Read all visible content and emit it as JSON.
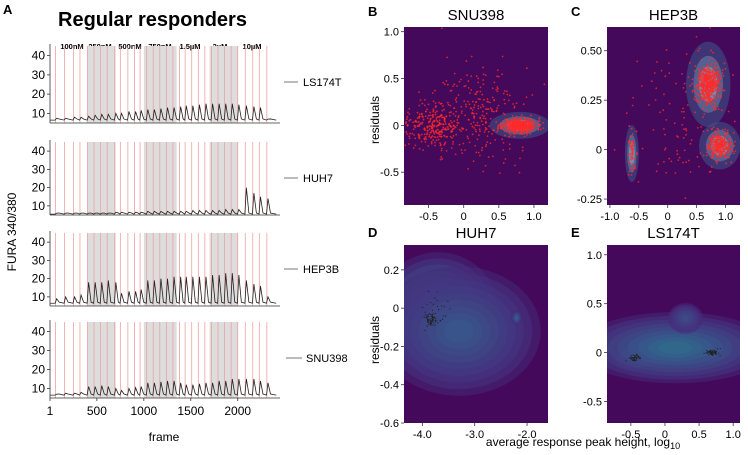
{
  "figure": {
    "panel_labels": [
      "A",
      "B",
      "C",
      "D",
      "E"
    ],
    "title_a": "Regular responders",
    "y_label_a": "FURA 340/380",
    "x_label_a": "frame",
    "y_label_right": "residuals",
    "x_label_right": "average response peak height, log",
    "x_label_right_sub": "10"
  },
  "chart_data": [
    {
      "type": "line",
      "panel": "A",
      "title": "Regular responders",
      "xlabel": "frame",
      "ylabel": "FURA 340/380",
      "xlim": [
        1,
        2450
      ],
      "ylim": [
        5,
        45
      ],
      "x_ticks": [
        1,
        500,
        1000,
        1500,
        2000
      ],
      "x_tick_labels": [
        "1",
        "500",
        "1000",
        "1500",
        "2000"
      ],
      "y_ticks": [
        10,
        20,
        30,
        40
      ],
      "y_tick_labels": [
        "10",
        "20",
        "30",
        "40"
      ],
      "concentrations": [
        "100nM",
        "250nM",
        "500nM",
        "750nM",
        "1.5µM",
        "3µM",
        "10µM"
      ],
      "shaded_regions_frames": [
        [
          400,
          700
        ],
        [
          1000,
          1350
        ],
        [
          1700,
          2000
        ]
      ],
      "stimulus_frames": [
        60,
        155,
        250,
        320,
        400,
        470,
        540,
        610,
        690,
        750,
        830,
        900,
        960,
        1030,
        1100,
        1170,
        1240,
        1310,
        1380,
        1440,
        1510,
        1580,
        1650,
        1720,
        1790,
        1860,
        1930,
        2000,
        2080,
        2160,
        2230,
        2310
      ],
      "series": [
        {
          "name": "LS174T",
          "baseline": 6.5,
          "peaks": [
            7.5,
            7.5,
            8,
            8,
            8.5,
            9,
            9.5,
            9.5,
            10,
            10,
            11,
            11,
            11.5,
            12,
            12,
            12.5,
            13,
            13,
            13.5,
            14,
            14,
            14.5,
            15,
            15,
            15,
            15,
            15,
            14.5,
            14,
            13.5,
            13,
            7
          ]
        },
        {
          "name": "HUH7",
          "baseline": 5.5,
          "peaks": [
            6,
            6,
            6,
            6,
            6,
            6,
            6,
            6,
            6.5,
            6.5,
            6.5,
            6.5,
            6.5,
            7,
            7,
            7,
            7,
            7,
            7,
            7,
            7.5,
            7.5,
            7.5,
            7.5,
            7.5,
            8,
            8,
            8,
            20,
            17,
            15,
            14
          ]
        },
        {
          "name": "HEP3B",
          "baseline": 6.5,
          "peaks": [
            9,
            10,
            10,
            11,
            18,
            18,
            18,
            19,
            18,
            12,
            13,
            13,
            14,
            19,
            19,
            20,
            20,
            21,
            21,
            21,
            21,
            21,
            21,
            22,
            22,
            23,
            23,
            22,
            19,
            17,
            16,
            10
          ]
        },
        {
          "name": "SNU398",
          "baseline": 6.5,
          "peaks": [
            7,
            7.5,
            7.5,
            8,
            11,
            11,
            11.5,
            11,
            10,
            9,
            10,
            10.5,
            11,
            13,
            13,
            13.5,
            14,
            14,
            13,
            12,
            12,
            12.5,
            13,
            13,
            14,
            14,
            15,
            15,
            15,
            15,
            14,
            13
          ]
        }
      ]
    },
    {
      "type": "scatter",
      "panel": "B",
      "title": "SNU398",
      "ylabel": "residuals",
      "xlim": [
        -0.85,
        1.2
      ],
      "ylim": [
        -0.85,
        1.05
      ],
      "x_ticks": [
        -0.5,
        0,
        0.5,
        1.0
      ],
      "x_tick_labels": [
        "-0.5",
        "0",
        "0.5",
        "1.0"
      ],
      "y_ticks": [
        -0.5,
        0,
        0.5,
        1.0
      ],
      "y_tick_labels": [
        "-0.5",
        "0",
        "0.5",
        "1.0"
      ],
      "clusters": [
        {
          "cx": 0.8,
          "cy": 0.0,
          "sx": 0.12,
          "sy": 0.04,
          "n": 500
        },
        {
          "cx": -0.45,
          "cy": 0.0,
          "sx": 0.18,
          "sy": 0.12,
          "n": 260
        },
        {
          "cx": 0.25,
          "cy": 0.1,
          "sx": 0.35,
          "sy": 0.25,
          "n": 260
        }
      ],
      "density": [
        {
          "cx": 0.8,
          "cy": 0.0,
          "sx": 0.18,
          "sy": 0.06
        }
      ]
    },
    {
      "type": "scatter",
      "panel": "C",
      "title": "HEP3B",
      "xlim": [
        -1.05,
        1.25
      ],
      "ylim": [
        -0.28,
        0.62
      ],
      "x_ticks": [
        -1.0,
        -0.5,
        0,
        0.5,
        1.0
      ],
      "x_tick_labels": [
        "-1.0",
        "-0.5",
        "0",
        "0.5",
        "1.0"
      ],
      "y_ticks": [
        -0.25,
        0,
        0.25,
        0.5
      ],
      "y_tick_labels": [
        "-0.25",
        "0",
        "0.25",
        "0.50"
      ],
      "clusters": [
        {
          "cx": 0.7,
          "cy": 0.33,
          "sx": 0.1,
          "sy": 0.05,
          "n": 520
        },
        {
          "cx": 0.9,
          "cy": 0.02,
          "sx": 0.1,
          "sy": 0.03,
          "n": 320
        },
        {
          "cx": -0.62,
          "cy": -0.02,
          "sx": 0.04,
          "sy": 0.06,
          "n": 60
        },
        {
          "cx": 0.3,
          "cy": 0.18,
          "sx": 0.45,
          "sy": 0.2,
          "n": 120
        }
      ],
      "density": [
        {
          "cx": 0.7,
          "cy": 0.33,
          "sx": 0.16,
          "sy": 0.09
        },
        {
          "cx": 0.9,
          "cy": 0.02,
          "sx": 0.15,
          "sy": 0.05
        },
        {
          "cx": -0.62,
          "cy": -0.02,
          "sx": 0.05,
          "sy": 0.06
        }
      ]
    },
    {
      "type": "heatmap",
      "panel": "D",
      "title": "HUH7",
      "ylabel": "residuals",
      "xlim": [
        -4.35,
        -1.6
      ],
      "ylim": [
        -0.6,
        0.33
      ],
      "x_ticks": [
        -4.0,
        -3.0,
        -2.0
      ],
      "x_tick_labels": [
        "-4.0",
        "-3.0",
        "-2.0"
      ],
      "y_ticks": [
        -0.6,
        -0.4,
        -0.2,
        0,
        0.2
      ],
      "y_tick_labels": [
        "-0.6",
        "-0.4",
        "-0.2",
        "0",
        "0.2"
      ],
      "density": [
        {
          "cx": -3.85,
          "cy": -0.06,
          "sx": 0.18,
          "sy": 0.05,
          "w": 1.0
        },
        {
          "cx": -3.7,
          "cy": -0.02,
          "sx": 0.45,
          "sy": 0.12,
          "w": 0.45
        },
        {
          "cx": -3.3,
          "cy": -0.12,
          "sx": 0.6,
          "sy": 0.13,
          "w": 0.2
        },
        {
          "cx": -2.2,
          "cy": -0.05,
          "sx": 0.04,
          "sy": 0.015,
          "w": 0.25
        }
      ]
    },
    {
      "type": "heatmap",
      "panel": "E",
      "title": "LS174T",
      "xlim": [
        -0.85,
        1.1
      ],
      "ylim": [
        -0.72,
        1.1
      ],
      "x_ticks": [
        -0.5,
        0,
        0.5,
        1.0
      ],
      "x_tick_labels": [
        "-0.5",
        "0",
        "0.5",
        "1.0"
      ],
      "y_ticks": [
        -0.5,
        0,
        0.5,
        1.0
      ],
      "y_tick_labels": [
        "-0.5",
        "0",
        "0.5",
        "1.0"
      ],
      "density": [
        {
          "cx": 0.7,
          "cy": 0.0,
          "sx": 0.13,
          "sy": 0.045,
          "w": 1.0
        },
        {
          "cx": -0.45,
          "cy": -0.06,
          "sx": 0.13,
          "sy": 0.05,
          "w": 0.65
        },
        {
          "cx": 0.15,
          "cy": 0.05,
          "sx": 0.55,
          "sy": 0.14,
          "w": 0.3
        },
        {
          "cx": 0.3,
          "cy": 0.35,
          "sx": 0.1,
          "sy": 0.06,
          "w": 0.15
        }
      ]
    }
  ]
}
